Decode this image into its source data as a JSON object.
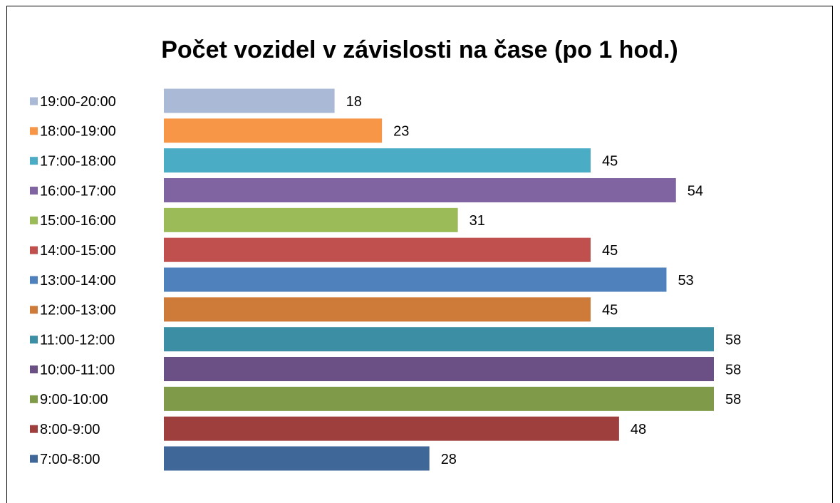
{
  "chart_data": {
    "type": "bar",
    "orientation": "horizontal",
    "title": "Počet vozidel v závislosti na čase (po 1 hod.)",
    "categories": [
      "7:00-8:00",
      "8:00-9:00",
      "9:00-10:00",
      "10:00-11:00",
      "11:00-12:00",
      "12:00-13:00",
      "13:00-14:00",
      "14:00-15:00",
      "15:00-16:00",
      "16:00-17:00",
      "17:00-18:00",
      "18:00-19:00",
      "19:00-20:00"
    ],
    "values": [
      28,
      48,
      58,
      58,
      58,
      45,
      53,
      45,
      31,
      54,
      45,
      23,
      18
    ],
    "colors": [
      "#3f6899",
      "#9e3f3d",
      "#7f9a48",
      "#6b5086",
      "#3b8ea3",
      "#ce7b3a",
      "#4f81bd",
      "#c0504d",
      "#9bbb59",
      "#8064a2",
      "#4bacc6",
      "#f79646",
      "#a9b9d6"
    ],
    "xlim": [
      0,
      58
    ]
  }
}
